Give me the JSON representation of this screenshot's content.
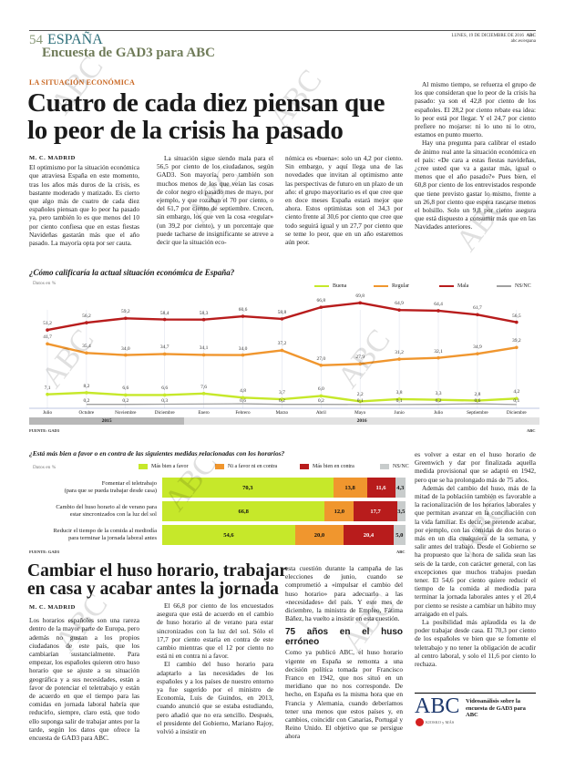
{
  "header": {
    "page_number": "54",
    "section": "ESPAÑA",
    "subsection": "Encuesta de GAD3 para ABC",
    "date": "LUNES, 19 DE DICIEMBRE DE 2016",
    "brand": "ABC",
    "web": "abc.es/espana"
  },
  "watermark": "ABC",
  "article1": {
    "kicker": "LA SITUACIÓN ECONÓMICA",
    "headline": "Cuatro de cada diez piensan que lo peor de la crisis ha pasado",
    "byline": "M. C. MADRID",
    "col1": [
      "El optimismo por la situación económica que atraviesa España en este momento, tras los años más duros de la crisis, es bastante moderado y matizado. Es cierto que algo más de cuatro de cada diez españoles piensan que lo peor ha pasado ya, pero también lo es que menos del 10 por ciento confiesa que en estas fiestas Navideñas gastarán más que el año pasado. La mayoría opta por ser cauta."
    ],
    "col2": [
      "La situación sigue siendo mala para el 56,5 por ciento de los ciudadanos, según GAD3. Son mayoría, pero también son muchos menos de los que veían las cosas de color negro el pasado mes de mayo, por ejemplo, y que rozaban el 70 por ciento, o del 61,7 por ciento de septiembre. Crecen, sin embargo, los que ven la cosa «regular» (un 39,2 por ciento), y un porcentaje que puede tacharse de insignificante se atreve a decir que la situación eco-"
    ],
    "col3": [
      "nómica es «buena»: solo un 4,2 por ciento. Sin embargo, y aquí llega una de las novedades que invitan al optimismo ante las perspectivas de futuro en un plazo de un año: el grupo mayoritario es el que cree que en doce meses España estará mejor que ahora. Estos optimistas son el 34,3 por ciento frente al 30,6 por ciento que cree que todo seguirá igual y un 27,7 por ciento que se teme lo peor, que en un año estaremos aún peor."
    ],
    "col4": [
      "Al mismo tiempo, se refuerza el grupo de los que consideran que lo peor de la crisis ha pasado: ya son el 42,8 por ciento de los españoles. El 28,2 por ciento rebate esa idea: lo peor está por llegar. Y el 24,7 por ciento prefiere no mojarse: ni lo uno ni lo otro, estamos en punto muerto.",
      "Hay una pregunta para calibrar el estado de ánimo real ante la situación económica en el país: «De cara a estas fiestas navideñas, ¿cree usted que va a gastar más, igual o menos que el año pasado?» Pues bien, el 60,8 por ciento de los entrevistados responde que tiene previsto gastar lo mismo, frente a un 26,8 por ciento que espera rascarse menos el bolsillo. Solo un 9,8 por ciento asegura que está dispuesto a consumir más que en las Navidades anteriores."
    ]
  },
  "chart_data": [
    {
      "type": "line",
      "title": "¿Cómo calificaría la actual situación económica de España?",
      "note": "Datos en %",
      "categories": [
        "Julio",
        "Octubre",
        "Noviembre",
        "Diciembre",
        "Enero",
        "Febrero",
        "Marzo",
        "Abril",
        "Mayo",
        "Junio",
        "Julio",
        "Septiembre",
        "Diciembre"
      ],
      "year_groups": [
        {
          "label": "2015",
          "from": 0,
          "to": 3
        },
        {
          "label": "2016",
          "from": 4,
          "to": 12
        }
      ],
      "legend_placement": "top-right",
      "series": [
        {
          "name": "Buena",
          "color": "#c6e82a",
          "values": [
            7.1,
            8.2,
            6.6,
            6.6,
            7.6,
            4.8,
            3.7,
            6.0,
            2.2,
            3.8,
            3.3,
            2.8,
            4.2
          ]
        },
        {
          "name": "Regular",
          "color": "#f0962e",
          "values": [
            41.7,
            35.4,
            34.0,
            34.7,
            34.1,
            34.0,
            37.2,
            27.0,
            27.9,
            31.2,
            32.1,
            34.9,
            39.2
          ]
        },
        {
          "name": "Mala",
          "color": "#b81c1c",
          "values": [
            51.2,
            56.2,
            59.2,
            58.4,
            58.3,
            60.6,
            58.8,
            66.8,
            69.8,
            64.9,
            64.4,
            61.7,
            56.5
          ]
        },
        {
          "name": "NS/NC",
          "color": "#a0a0a0",
          "values": [
            null,
            0.2,
            0.2,
            0.3,
            null,
            0.6,
            0.2,
            0.2,
            0.1,
            0.1,
            0.2,
            0.6,
            0.1
          ]
        }
      ],
      "source": "FUENTE: GAD3",
      "credit": "ABC"
    },
    {
      "type": "bar",
      "stacked": true,
      "orientation": "horizontal",
      "title": "¿Está más bien a favor o en contra de las siguientes medidas relacionadas con los horarios?",
      "note": "Datos en %",
      "legend_placement": "top",
      "categories": [
        [
          "Fomentar el teletrabajo",
          "(para que se pueda trabajar desde casa)"
        ],
        [
          "Cambio del huso horario al de verano para",
          "estar sincronizados con la luz del sol"
        ],
        [
          "Reducir el tiempo de la comida al mediodía",
          "para terminar la jornada laboral antes"
        ]
      ],
      "series": [
        {
          "name": "Más bien a favor",
          "color": "#c6e82a",
          "values": [
            70.3,
            66.8,
            54.6
          ],
          "labels": [
            "70,3",
            "66,8",
            "54,6"
          ]
        },
        {
          "name": "Ni a favor ni en contra",
          "color": "#f0962e",
          "values": [
            13.8,
            12.0,
            20.0
          ],
          "labels": [
            "13,8",
            "12,0",
            "20,0"
          ]
        },
        {
          "name": "Más bien en contra",
          "color": "#b81c1c",
          "values": [
            11.6,
            17.7,
            20.4
          ],
          "labels": [
            "11,6",
            "17,7",
            "20,4"
          ]
        },
        {
          "name": "NS/NC",
          "color": "#c8cccc",
          "values": [
            4.3,
            3.5,
            5.0
          ],
          "labels": [
            "4,3",
            "3,5",
            "5,0"
          ]
        }
      ],
      "source": "FUENTE: GAD3",
      "credit": "ABC"
    }
  ],
  "article2": {
    "headline": "Cambiar el huso horario, trabajar en casa y acabar antes la jornada",
    "byline": "M. C. MADRID",
    "col1": [
      "Los horarios españoles son una rareza dentro de la mayor parte de Europa, pero además no gustan a los propios ciudadanos de este país, que los cambiarían sustancialmente. Para empezar, los españoles quieren otro huso horario que se ajuste a su situación geográfica y a sus necesidades, están a favor de potenciar el teletrabajo y están de acuerdo en que el tiempo para las comidas en jornada laboral habría que reducirlo, siempre, claro está, que todo ello suponga salir de trabajar antes por la tarde, según los datos que ofrece la encuesta de GAD3 para ABC."
    ],
    "col2": [
      "El 66,8 por ciento de los encuestados asegura que está de acuerdo en el cambio de huso horario al de verano para estar sincronizados con la luz del sol. Sólo el 17,7 por ciento estaría en contra de este cambio mientras que el 12 por ciento no está ni en contra ni a favor.",
      "El cambio del huso horario para adaptarlo a las necesidades de los españoles y a los países de nuestro entorno ya fue sugerido por el ministro de Economía, Luis de Guindos, en 2013, cuando anunció que se estaba estudiando, pero añadió que no era sencillo. Después, el presidente del Gobierno, Mariano Rajoy, volvió a insistir en"
    ],
    "col3a": [
      "esta cuestión durante la campaña de las elecciones de junio, cuando se comprometió a «impulsar el cambio del huso horario» para adecuarlo a las «necesidades» del país. Y este mes de diciembre, la ministra de Empleo, Fátima Báñez, ha vuelto a insistir en esta cuestión."
    ],
    "subhead": "75 años en el huso erróneo",
    "col3b": [
      "Como ya publicó ABC, el huso horario vigente en España se remonta a una decisión política tomada por Francisco Franco en 1942, que nos situó en un meridiano que no nos corresponde. De hecho, en España es la misma hora que en Francia y Alemania, cuando deberíamos tener una menos que estos países y, en cambios, coincidir con Canarias, Portugal y Reino Unido. El objetivo que se persigue ahora"
    ],
    "col4": [
      "es volver a estar en el huso horario de Greenwich y dar por finalizada aquella medida provisional que se adaptó en 1942, pero que se ha prolongado más de 75 años.",
      "Además del cambio del huso, más de la mitad de la población también es favorable a la racionalización de los horarios laborales y que permitan avanzar en la conciliación con la vida familiar. Es decir, se pretende acabar, por ejemplo, con las comidas de dos horas o más en un día cualquiera de la semana, y salir antes del trabajo. Desde el Gobierno se ha propuesto que la hora de salida sean las seis de la tarde, con carácter general, con las excepciones que muchos trabajos puedan tener. El 54,6 por ciento quiere reducir el tiempo de la comida al mediodía para terminar la jornada laborales antes y el 20,4 por ciento se resiste a cambiar un hábito muy arraigado en el país.",
      "La posibilidad más aplaudida es la de poder trabajar desde casa. El 70,3 por ciento de los españoles ve bien que se fomente el teletrabajo y no tener la obligación de acudir al centro laboral, y solo el 11,6 por ciento lo rechaza."
    ],
    "promo": {
      "logo": "ABC",
      "sublogo": "KIOSKO y MÁS",
      "text": "Videoanálisis sobre la encuesta de GAD3 para ABC"
    }
  }
}
